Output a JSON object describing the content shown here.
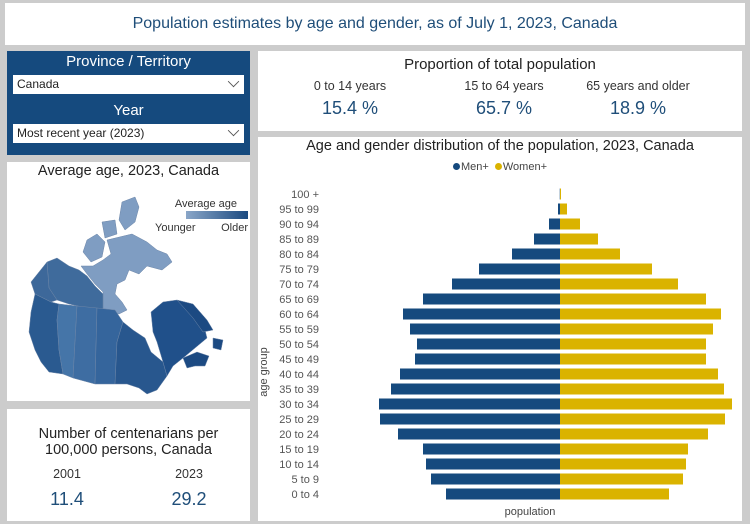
{
  "header": {
    "title": "Population estimates by age and gender, as of July 1, 2023, Canada"
  },
  "filters": {
    "province_label": "Province / Territory",
    "province_value": "Canada",
    "year_label": "Year",
    "year_value": "Most recent year (2023)"
  },
  "proportion": {
    "title": "Proportion of total population",
    "groups": [
      {
        "label": "0 to 14 years",
        "value": "15.4 %"
      },
      {
        "label": "15 to 64 years",
        "value": "65.7 %"
      },
      {
        "label": "65 years and older",
        "value": "18.9 %"
      }
    ]
  },
  "map": {
    "title": "Average age, 2023, Canada",
    "legend_title": "Average age",
    "legend_low": "Younger",
    "legend_high": "Older",
    "color_low": "#8aa6c8",
    "color_high": "#1b4a80"
  },
  "centenarians": {
    "title_line1": "Number of centenarians per",
    "title_line2": "100,000 persons, Canada",
    "items": [
      {
        "year": "2001",
        "value": "11.4"
      },
      {
        "year": "2023",
        "value": "29.2"
      }
    ]
  },
  "chart_data": {
    "type": "bar",
    "orientation": "horizontal-pyramid",
    "title": "Age and gender distribution of the population, 2023, Canada",
    "xlabel": "population",
    "ylabel": "age group",
    "note": "values in thousands, estimated relative to bar length (no axis scale shown)",
    "categories": [
      "100 +",
      "95 to 99",
      "90 to 94",
      "85 to 89",
      "80 to 84",
      "75 to 79",
      "70 to 74",
      "65 to 69",
      "60 to 64",
      "55 to 59",
      "50 to 54",
      "45 to 49",
      "40 to 44",
      "35 to 39",
      "30 to 34",
      "25 to 29",
      "20 to 24",
      "15 to 19",
      "10 to 14",
      "5 to 9",
      "0 to 4"
    ],
    "series": [
      {
        "name": "Men+",
        "color": "#154a7e",
        "values": [
          2,
          16,
          88,
          208,
          384,
          648,
          864,
          1096,
          1256,
          1200,
          1144,
          1160,
          1280,
          1352,
          1448,
          1440,
          1296,
          1096,
          1072,
          1032,
          912
        ]
      },
      {
        "name": "Women+",
        "color": "#dab300",
        "values": [
          8,
          56,
          160,
          304,
          480,
          736,
          944,
          1168,
          1288,
          1224,
          1168,
          1168,
          1264,
          1312,
          1376,
          1320,
          1184,
          1024,
          1008,
          984,
          872
        ]
      }
    ],
    "legend_position": "top-center",
    "grid": false
  }
}
